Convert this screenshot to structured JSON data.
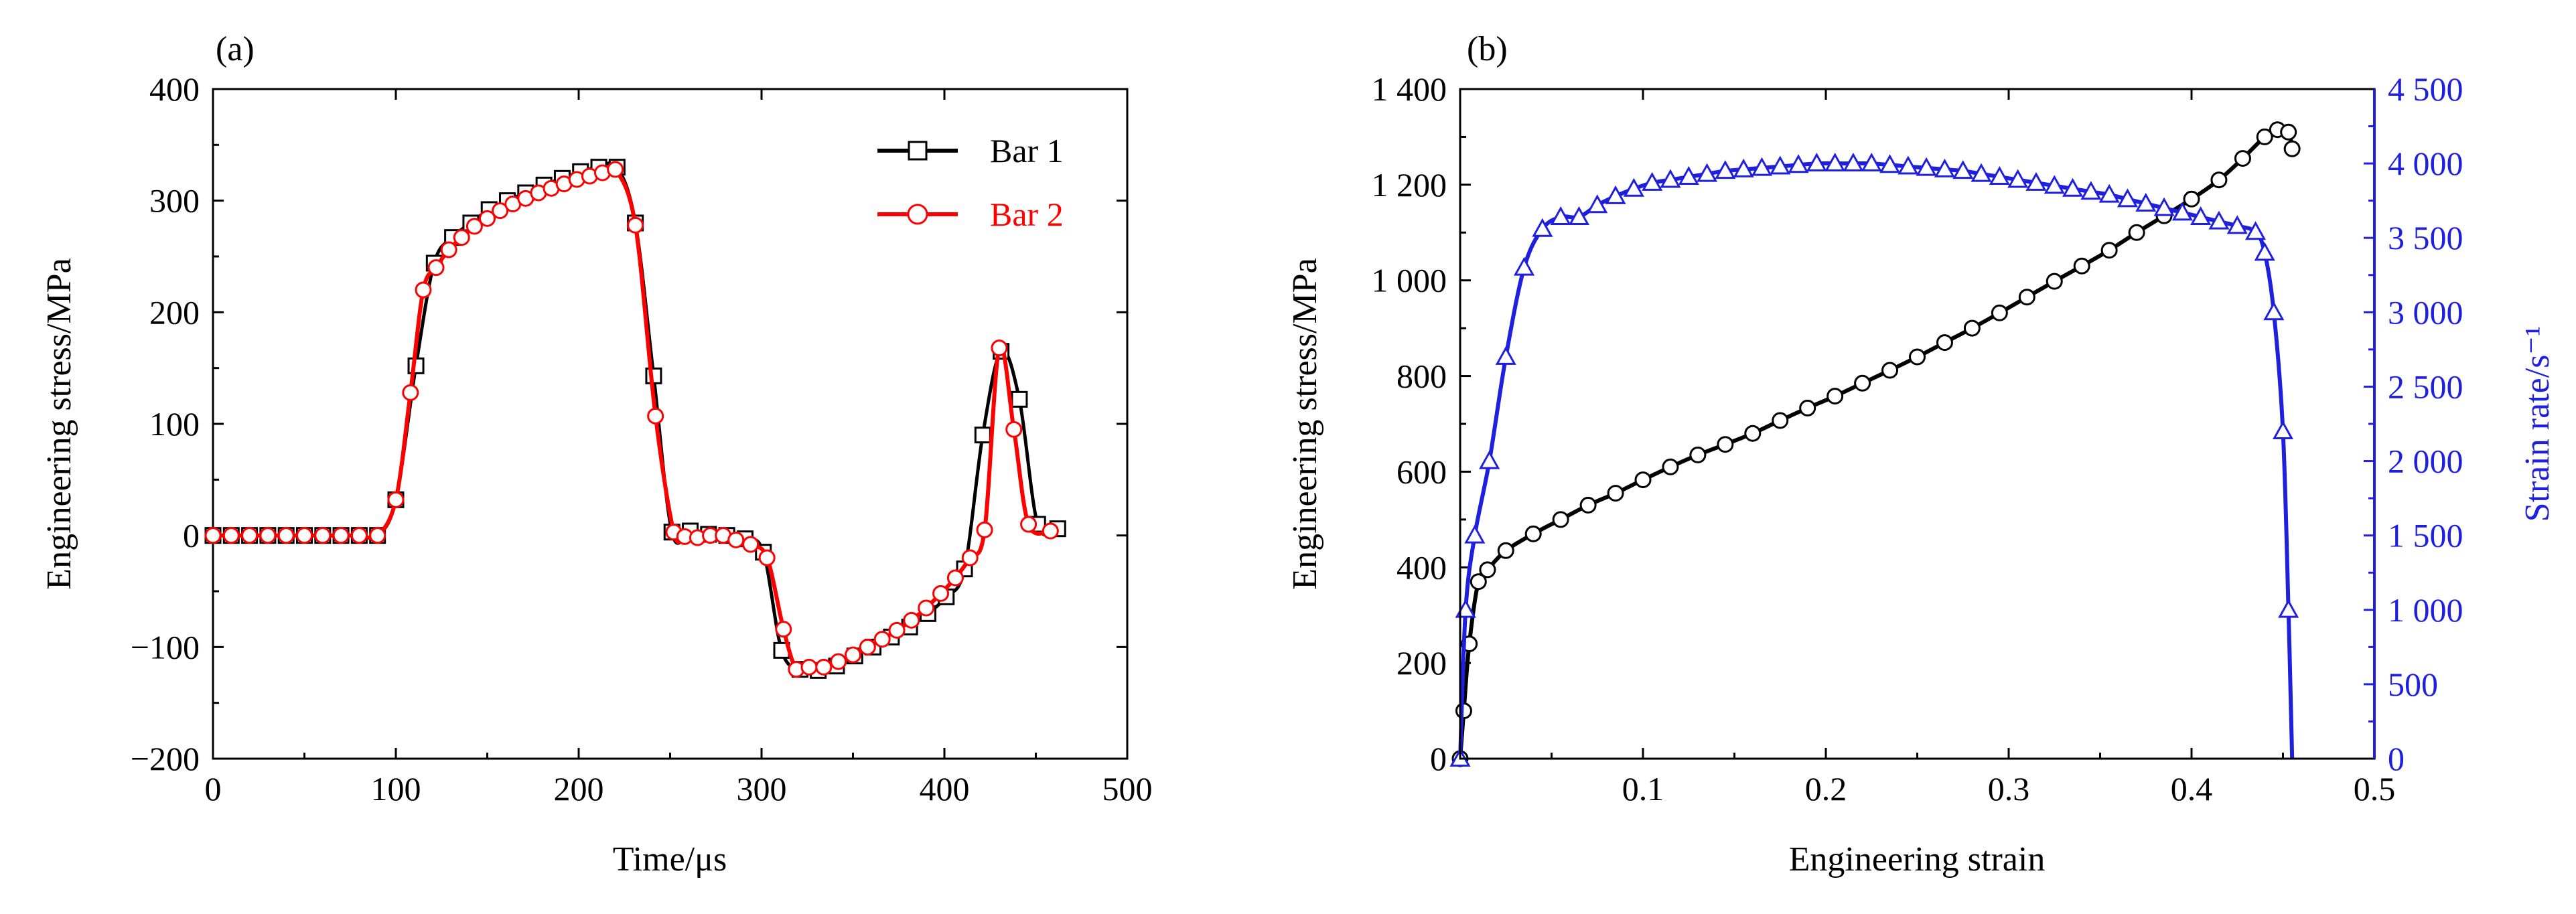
{
  "colors": {
    "bar1": "#000000",
    "bar2": "#ff0000",
    "stress_b": "#000000",
    "rate_b": "#1f1fe0",
    "axis": "#000000"
  },
  "chart_data": [
    {
      "panel": "(a)",
      "type": "line",
      "xlabel": "Time/μs",
      "ylabel": "Engineering stress/MPa",
      "xlim": [
        0,
        500
      ],
      "ylim": [
        -200,
        400
      ],
      "x_ticks": [
        0,
        100,
        200,
        300,
        400,
        500
      ],
      "x_tick_labels": [
        "0",
        "100",
        "200",
        "300",
        "400",
        "500"
      ],
      "y_ticks": [
        -200,
        -100,
        0,
        100,
        200,
        300,
        400
      ],
      "y_tick_labels": [
        "−200",
        "−100",
        "0",
        "100",
        "200",
        "300",
        "400"
      ],
      "legend": {
        "position": "top-right",
        "entries": [
          "Bar 1",
          "Bar 2"
        ]
      },
      "series": [
        {
          "name": "Bar 1",
          "marker": "square",
          "color": "#000000",
          "x": [
            0,
            10,
            20,
            30,
            40,
            50,
            60,
            70,
            80,
            90,
            100,
            111,
            121,
            131,
            141,
            151,
            161,
            171,
            181,
            191,
            201,
            211,
            221,
            231,
            241,
            251,
            261,
            271,
            281,
            291,
            301,
            311,
            321,
            331,
            341,
            351,
            361,
            371,
            381,
            391,
            401,
            411,
            421,
            431,
            441,
            451,
            462
          ],
          "y": [
            0,
            0,
            0,
            0,
            0,
            0,
            0,
            0,
            0,
            0,
            32,
            152,
            244,
            267,
            280,
            292,
            300,
            307,
            314,
            320,
            326,
            330,
            330,
            280,
            143,
            3,
            4,
            1,
            0,
            -3,
            -15,
            -103,
            -120,
            -121,
            -117,
            -108,
            -100,
            -91,
            -82,
            -70,
            -55,
            -30,
            90,
            165,
            122,
            10,
            6
          ]
        },
        {
          "name": "Bar 2",
          "marker": "circle",
          "color": "#ff0000",
          "x": [
            0,
            10,
            20,
            30,
            40,
            50,
            60,
            70,
            80,
            90,
            100,
            108,
            115,
            122,
            129,
            136,
            143,
            150,
            157,
            164,
            171,
            178,
            185,
            192,
            199,
            206,
            213,
            220,
            231,
            242,
            252,
            258,
            265,
            272,
            279,
            286,
            294,
            303,
            312,
            319,
            326,
            334,
            342,
            350,
            358,
            366,
            374,
            382,
            390,
            398,
            406,
            414,
            422,
            430,
            438,
            446,
            458
          ],
          "y": [
            0,
            0,
            0,
            0,
            0,
            0,
            0,
            0,
            0,
            0,
            32,
            128,
            220,
            240,
            256,
            267,
            277,
            284,
            291,
            297,
            302,
            307,
            311,
            315,
            319,
            322,
            325,
            328,
            278,
            107,
            3,
            -1,
            -2,
            0,
            0,
            -4,
            -8,
            -20,
            -84,
            -120,
            -118,
            -118,
            -113,
            -107,
            -100,
            -93,
            -85,
            -76,
            -65,
            -52,
            -38,
            -20,
            5,
            168,
            95,
            10,
            4
          ]
        }
      ]
    },
    {
      "panel": "(b)",
      "type": "line",
      "xlabel": "Engineering strain",
      "ylabel": "Engineering stress/MPa",
      "y2label": "Strain rate/s⁻¹",
      "xlim": [
        0,
        0.5
      ],
      "ylim": [
        0,
        1400
      ],
      "y2lim": [
        0,
        4500
      ],
      "x_ticks": [
        0.1,
        0.2,
        0.3,
        0.4,
        0.5
      ],
      "x_tick_labels": [
        "0.1",
        "0.2",
        "0.3",
        "0.4",
        "0.5"
      ],
      "y_ticks": [
        0,
        200,
        400,
        600,
        800,
        1000,
        1200,
        1400
      ],
      "y_tick_labels": [
        "0",
        "200",
        "400",
        "600",
        "800",
        "1 000",
        "1 200",
        "1 400"
      ],
      "y2_ticks": [
        0,
        500,
        1000,
        1500,
        2000,
        2500,
        3000,
        3500,
        4000,
        4500
      ],
      "y2_tick_labels": [
        "0",
        "500",
        "1 000",
        "1 500",
        "2 000",
        "2 500",
        "3 000",
        "3 500",
        "4 000",
        "4 500"
      ],
      "series": [
        {
          "name": "",
          "axis": "left",
          "marker": "circle",
          "color": "#000000",
          "x": [
            0,
            0.002,
            0.005,
            0.01,
            0.015,
            0.025,
            0.04,
            0.055,
            0.07,
            0.085,
            0.1,
            0.115,
            0.13,
            0.145,
            0.16,
            0.175,
            0.19,
            0.205,
            0.22,
            0.235,
            0.25,
            0.265,
            0.28,
            0.295,
            0.31,
            0.325,
            0.34,
            0.355,
            0.37,
            0.385,
            0.4,
            0.415,
            0.428,
            0.44,
            0.447,
            0.453,
            0.455
          ],
          "y": [
            0,
            100,
            240,
            370,
            395,
            435,
            470,
            500,
            530,
            555,
            583,
            610,
            635,
            657,
            680,
            707,
            733,
            758,
            785,
            812,
            840,
            870,
            900,
            932,
            965,
            998,
            1030,
            1063,
            1100,
            1135,
            1170,
            1210,
            1255,
            1300,
            1315,
            1310,
            1275
          ]
        },
        {
          "name": "",
          "axis": "right",
          "marker": "triangle",
          "color": "#1f1fe0",
          "x": [
            0,
            0.003,
            0.008,
            0.016,
            0.025,
            0.035,
            0.045,
            0.055,
            0.065,
            0.075,
            0.085,
            0.095,
            0.105,
            0.115,
            0.125,
            0.135,
            0.145,
            0.155,
            0.165,
            0.175,
            0.185,
            0.195,
            0.205,
            0.215,
            0.225,
            0.235,
            0.245,
            0.255,
            0.265,
            0.275,
            0.285,
            0.295,
            0.305,
            0.315,
            0.325,
            0.335,
            0.345,
            0.355,
            0.365,
            0.375,
            0.385,
            0.395,
            0.405,
            0.415,
            0.425,
            0.435,
            0.44,
            0.445,
            0.45,
            0.453,
            0.455
          ],
          "y": [
            0,
            1000,
            1500,
            2000,
            2700,
            3300,
            3560,
            3640,
            3640,
            3720,
            3780,
            3830,
            3870,
            3890,
            3910,
            3930,
            3950,
            3960,
            3970,
            3980,
            3990,
            4000,
            4000,
            4000,
            4000,
            3990,
            3980,
            3970,
            3960,
            3950,
            3930,
            3910,
            3890,
            3870,
            3850,
            3830,
            3810,
            3790,
            3760,
            3730,
            3700,
            3670,
            3640,
            3610,
            3580,
            3540,
            3400,
            3000,
            2200,
            1000,
            0
          ]
        }
      ]
    }
  ]
}
